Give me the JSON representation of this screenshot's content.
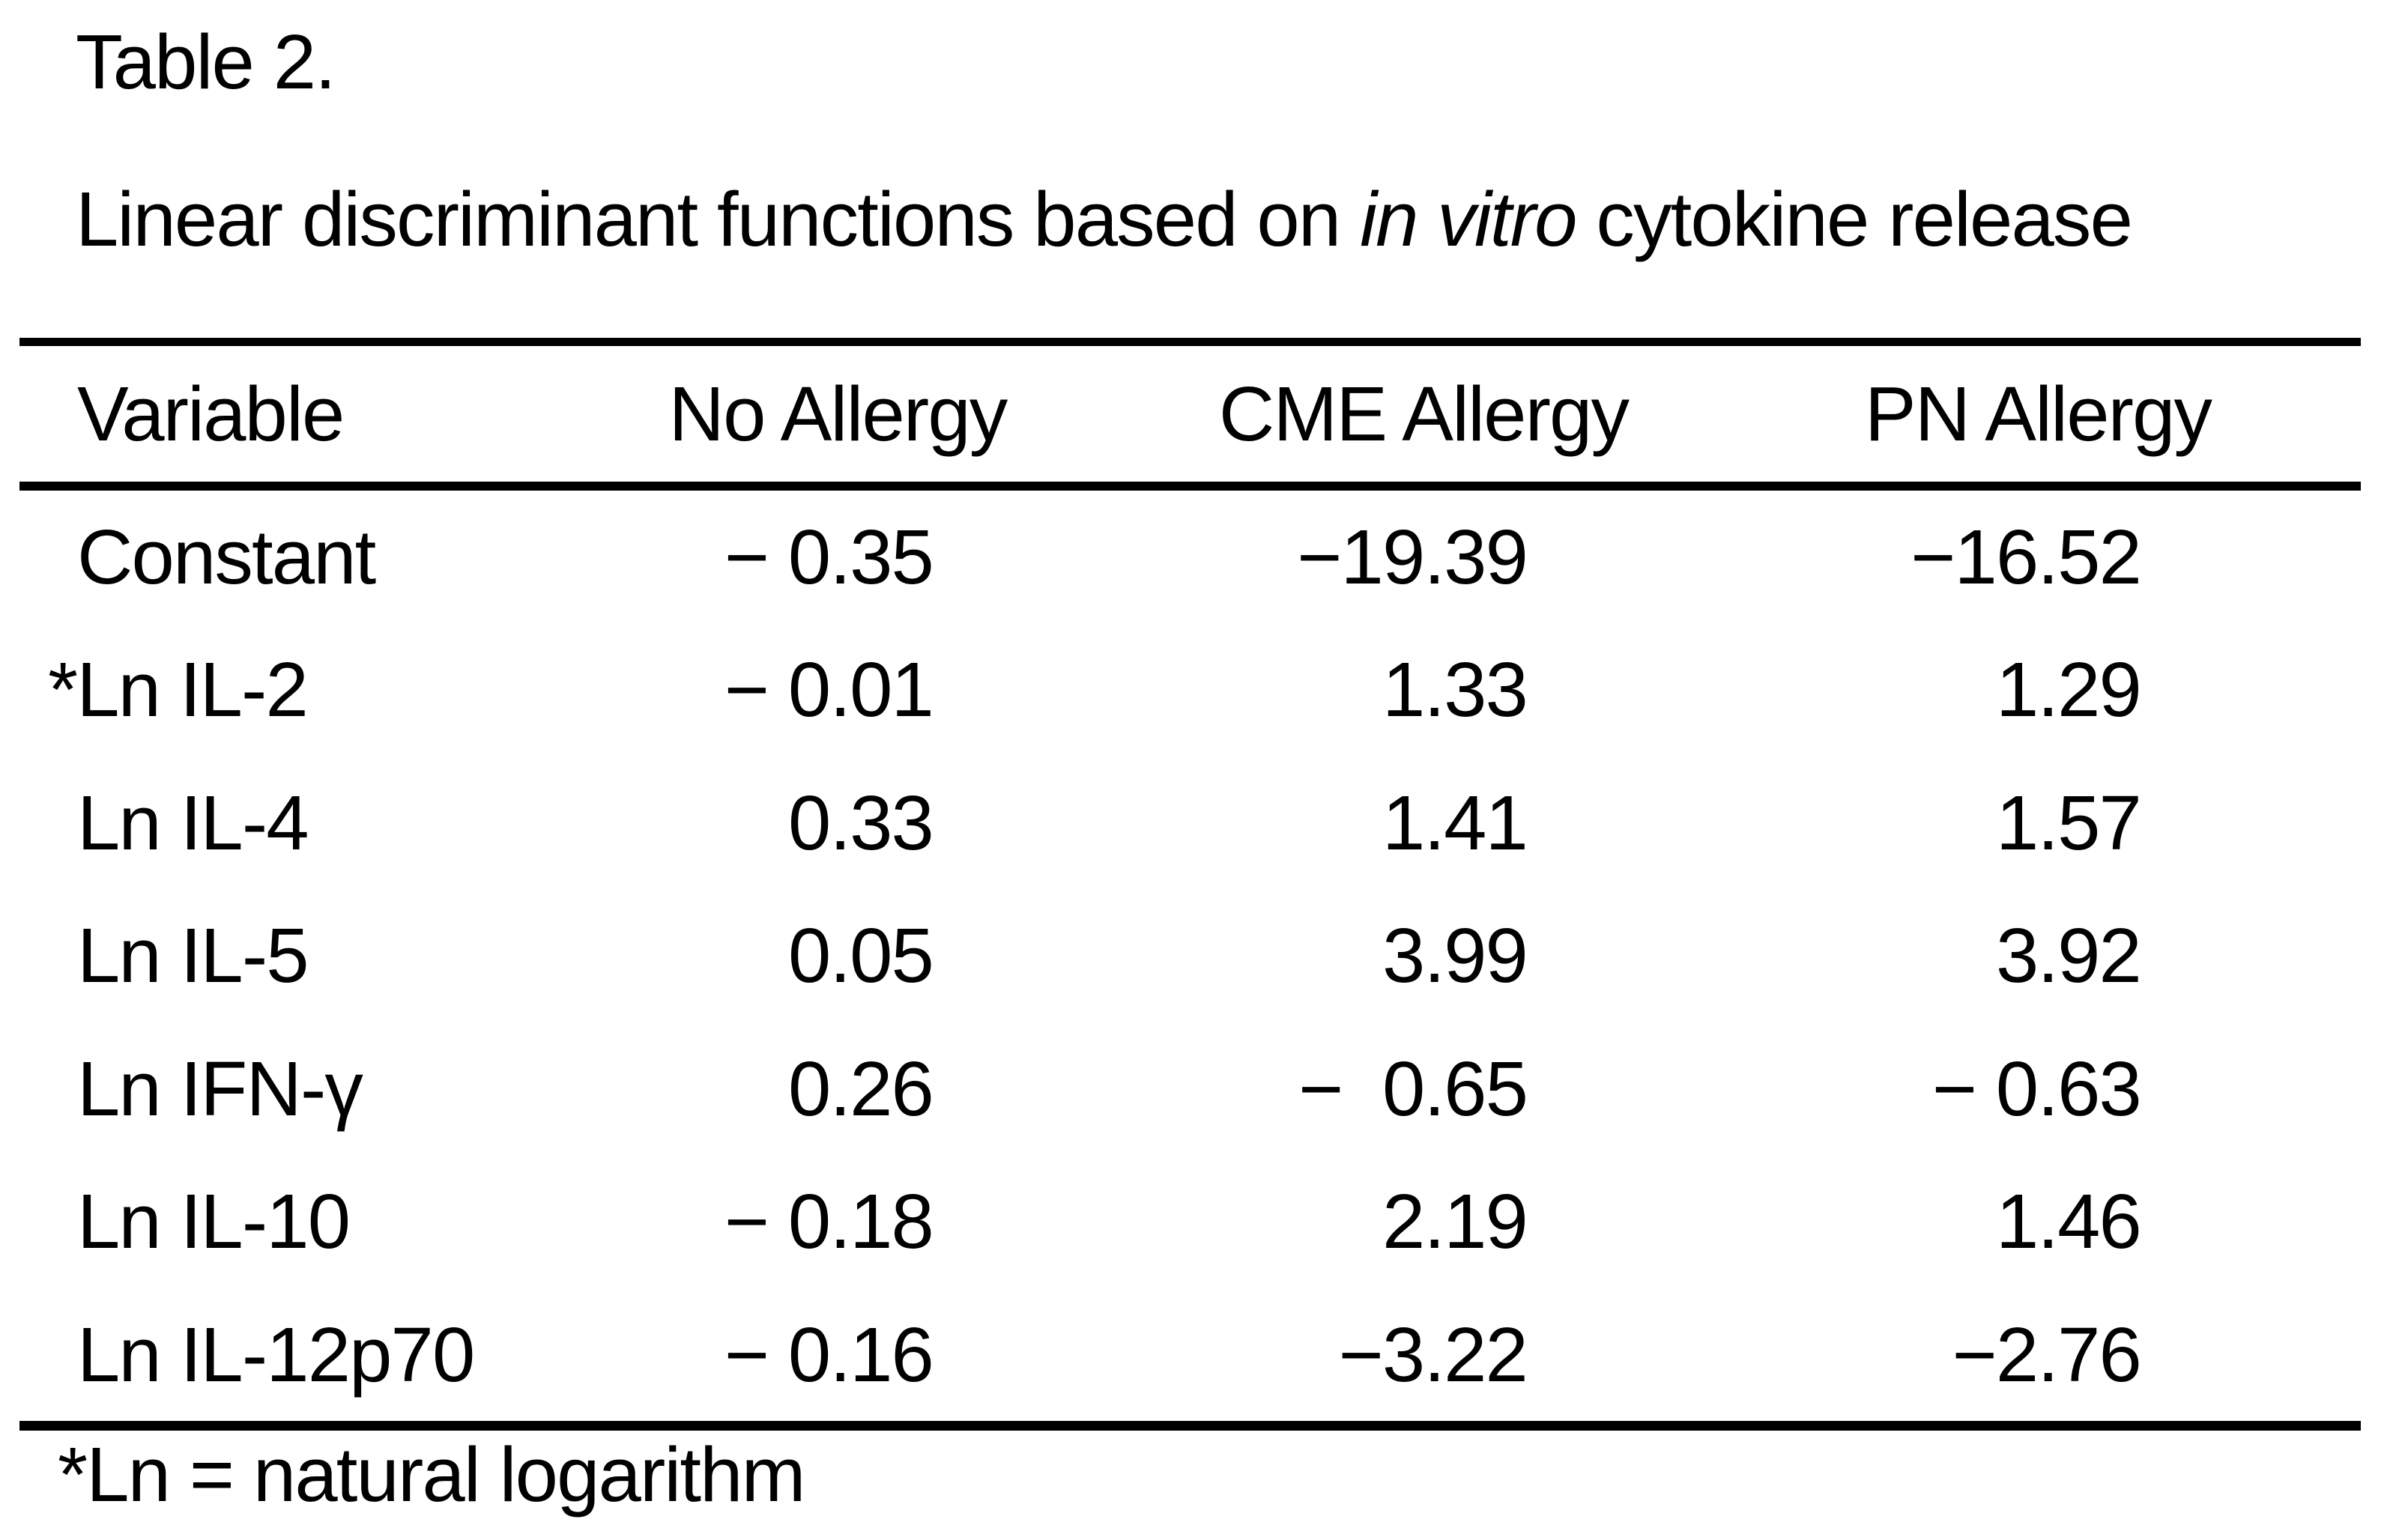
{
  "page": {
    "title": "Table 2.",
    "subtitle": {
      "prefix": "Linear discriminant functions based on ",
      "italic": "in vitro",
      "suffix": " cytokine release"
    }
  },
  "table": {
    "columns": [
      "Variable",
      "No Allergy",
      "CME Allergy",
      "PN Allergy"
    ],
    "rows": [
      {
        "variable": "Constant",
        "no_allergy": "− 0.35",
        "cme_allergy": "−19.39",
        "pn_allergy": "−16.52"
      },
      {
        "variable": "*Ln IL-2",
        "no_allergy": "− 0.01",
        "cme_allergy": "1.33",
        "pn_allergy": "1.29"
      },
      {
        "variable": "Ln IL-4",
        "no_allergy": "0.33",
        "cme_allergy": "1.41",
        "pn_allergy": "1.57"
      },
      {
        "variable": "Ln IL-5",
        "no_allergy": "0.05",
        "cme_allergy": "3.99",
        "pn_allergy": "3.92"
      },
      {
        "variable": "Ln IFN-γ",
        "no_allergy": "0.26",
        "cme_allergy": "−  0.65",
        "pn_allergy": "− 0.63"
      },
      {
        "variable": "Ln IL-10",
        "no_allergy": "− 0.18",
        "cme_allergy": "2.19",
        "pn_allergy": "1.46"
      },
      {
        "variable": "Ln IL-12p70",
        "no_allergy": "− 0.16",
        "cme_allergy": "−3.22",
        "pn_allergy": "−2.76"
      }
    ],
    "footnote": "*Ln = natural logarithm"
  },
  "chart_data": {
    "type": "table",
    "title": "Linear discriminant functions based on in vitro cytokine release",
    "columns": [
      "Variable",
      "No Allergy",
      "CME Allergy",
      "PN Allergy"
    ],
    "rows": [
      [
        "Constant",
        -0.35,
        -19.39,
        -16.52
      ],
      [
        "Ln IL-2",
        -0.01,
        1.33,
        1.29
      ],
      [
        "Ln IL-4",
        0.33,
        1.41,
        1.57
      ],
      [
        "Ln IL-5",
        0.05,
        3.99,
        3.92
      ],
      [
        "Ln IFN-γ",
        0.26,
        -0.65,
        -0.63
      ],
      [
        "Ln IL-10",
        -0.18,
        2.19,
        1.46
      ],
      [
        "Ln IL-12p70",
        -0.16,
        -3.22,
        -2.76
      ]
    ]
  },
  "colors": {
    "text": "#000000",
    "background": "#ffffff",
    "rule": "#000000"
  }
}
